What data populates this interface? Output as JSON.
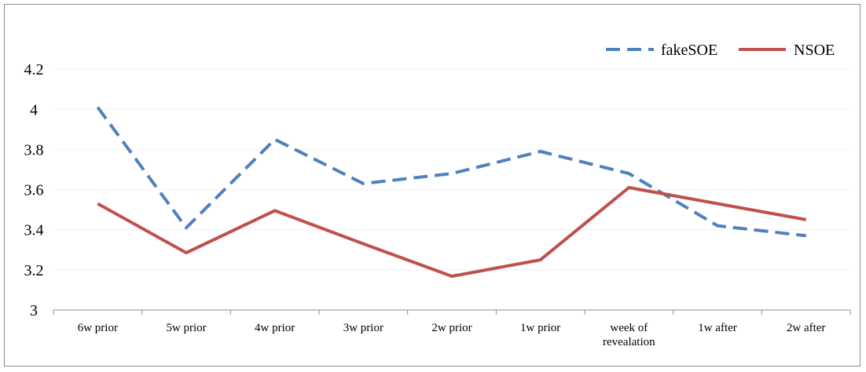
{
  "chart_data": {
    "type": "line",
    "categories": [
      "6w prior",
      "5w prior",
      "4w prior",
      "3w prior",
      "2w prior",
      "1w prior",
      "week of revealation",
      "1w after",
      "2w after"
    ],
    "category_lines": [
      [
        "6w prior"
      ],
      [
        "5w prior"
      ],
      [
        "4w prior"
      ],
      [
        "3w prior"
      ],
      [
        "2w prior"
      ],
      [
        "1w prior"
      ],
      [
        "week of",
        "revealation"
      ],
      [
        "1w after"
      ],
      [
        "2w after"
      ]
    ],
    "series": [
      {
        "name": "fakeSOE",
        "values": [
          4.01,
          3.41,
          3.85,
          3.63,
          3.68,
          3.79,
          3.68,
          3.42,
          3.37
        ],
        "color": "#4f81bd",
        "style": "dashed"
      },
      {
        "name": "NSOE",
        "values": [
          3.53,
          3.285,
          3.495,
          3.33,
          3.168,
          3.25,
          3.61,
          3.53,
          3.45
        ],
        "color": "#c0504d",
        "style": "solid"
      }
    ],
    "y_ticks": [
      "3",
      "3.2",
      "3.4",
      "3.6",
      "3.8",
      "4",
      "4.2"
    ],
    "ylim": [
      3,
      4.4
    ],
    "title": "",
    "xlabel": "",
    "ylabel": "",
    "grid": "horizontal",
    "legend_position": "top-right"
  }
}
